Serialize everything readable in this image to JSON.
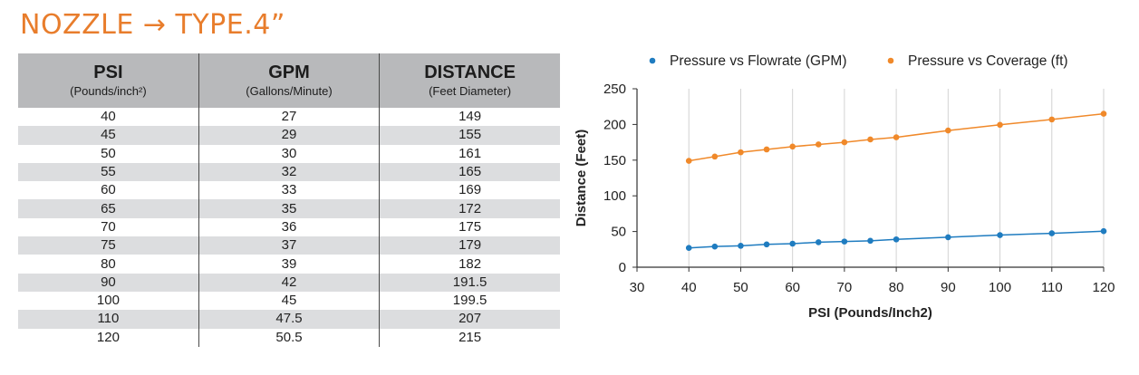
{
  "title": "NOZZLE → TYPE.4”",
  "table": {
    "headers": [
      {
        "main": "PSI",
        "sub": "(Pounds/inch²)"
      },
      {
        "main": "GPM",
        "sub": "(Gallons/Minute)"
      },
      {
        "main": "DISTANCE",
        "sub": "(Feet Diameter)"
      }
    ],
    "rows": [
      [
        "40",
        "27",
        "149"
      ],
      [
        "45",
        "29",
        "155"
      ],
      [
        "50",
        "30",
        "161"
      ],
      [
        "55",
        "32",
        "165"
      ],
      [
        "60",
        "33",
        "169"
      ],
      [
        "65",
        "35",
        "172"
      ],
      [
        "70",
        "36",
        "175"
      ],
      [
        "75",
        "37",
        "179"
      ],
      [
        "80",
        "39",
        "182"
      ],
      [
        "90",
        "42",
        "191.5"
      ],
      [
        "100",
        "45",
        "199.5"
      ],
      [
        "110",
        "47.5",
        "207"
      ],
      [
        "120",
        "50.5",
        "215"
      ]
    ]
  },
  "chart_data": {
    "type": "line",
    "xlabel": "PSI (Pounds/Inch2)",
    "ylabel": "Distance (Feet)",
    "xlim": [
      30,
      120
    ],
    "ylim": [
      0,
      250
    ],
    "xticks": [
      30,
      40,
      50,
      60,
      70,
      80,
      90,
      100,
      110,
      120
    ],
    "yticks": [
      0,
      50,
      100,
      150,
      200,
      250
    ],
    "grid": "vertical",
    "legend_position": "top",
    "x": [
      40,
      45,
      50,
      55,
      60,
      65,
      70,
      75,
      80,
      90,
      100,
      110,
      120
    ],
    "series": [
      {
        "name": "Pressure vs Flowrate (GPM)",
        "color": "#1f7cc0",
        "values": [
          27,
          29,
          30,
          32,
          33,
          35,
          36,
          37,
          39,
          42,
          45,
          47.5,
          50.5
        ]
      },
      {
        "name": "Pressure vs Coverage (ft)",
        "color": "#f0892a",
        "values": [
          149,
          155,
          161,
          165,
          169,
          172,
          175,
          179,
          182,
          191.5,
          199.5,
          207,
          215
        ]
      }
    ]
  }
}
